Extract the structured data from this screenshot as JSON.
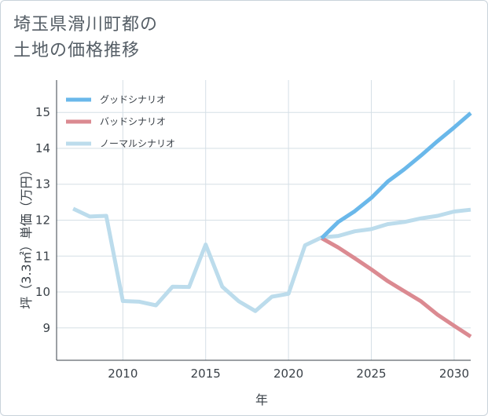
{
  "title_lines": [
    "埼玉県滑川町都の",
    "土地の価格推移"
  ],
  "chart_data": {
    "type": "line",
    "title": "埼玉県滑川町都の土地の価格推移",
    "xlabel": "年",
    "ylabel": "坪（3.3㎡）単価（万円）",
    "xlim": [
      2006,
      2031
    ],
    "ylim": [
      8.1,
      15.9
    ],
    "xticks": [
      2010,
      2015,
      2020,
      2025,
      2030
    ],
    "yticks": [
      9,
      10,
      11,
      12,
      13,
      14,
      15
    ],
    "grid": true,
    "legend_position": "top-left",
    "series": [
      {
        "name": "グッドシナリオ",
        "color": "#6ab8ea",
        "x": [
          2022,
          2023,
          2024,
          2025,
          2026,
          2027,
          2028,
          2029,
          2030,
          2031
        ],
        "values": [
          11.5,
          11.95,
          12.25,
          12.62,
          13.08,
          13.42,
          13.8,
          14.2,
          14.58,
          14.98
        ]
      },
      {
        "name": "バッドシナリオ",
        "color": "#db8a91",
        "x": [
          2022,
          2023,
          2024,
          2025,
          2026,
          2027,
          2028,
          2029,
          2030,
          2031
        ],
        "values": [
          11.5,
          11.24,
          10.94,
          10.63,
          10.3,
          10.02,
          9.74,
          9.37,
          9.06,
          8.76
        ]
      },
      {
        "name": "ノーマルシナリオ",
        "color": "#bcdcec",
        "x": [
          2007,
          2008,
          2009,
          2010,
          2011,
          2012,
          2013,
          2014,
          2015,
          2016,
          2017,
          2018,
          2019,
          2020,
          2021,
          2022,
          2023,
          2024,
          2025,
          2026,
          2027,
          2028,
          2029,
          2030,
          2031
        ],
        "values": [
          12.32,
          12.1,
          12.12,
          9.75,
          9.73,
          9.63,
          10.15,
          10.14,
          11.32,
          10.15,
          9.74,
          9.47,
          9.87,
          9.95,
          11.3,
          11.52,
          11.56,
          11.69,
          11.75,
          11.89,
          11.95,
          12.05,
          12.12,
          12.24,
          12.29
        ]
      }
    ]
  }
}
